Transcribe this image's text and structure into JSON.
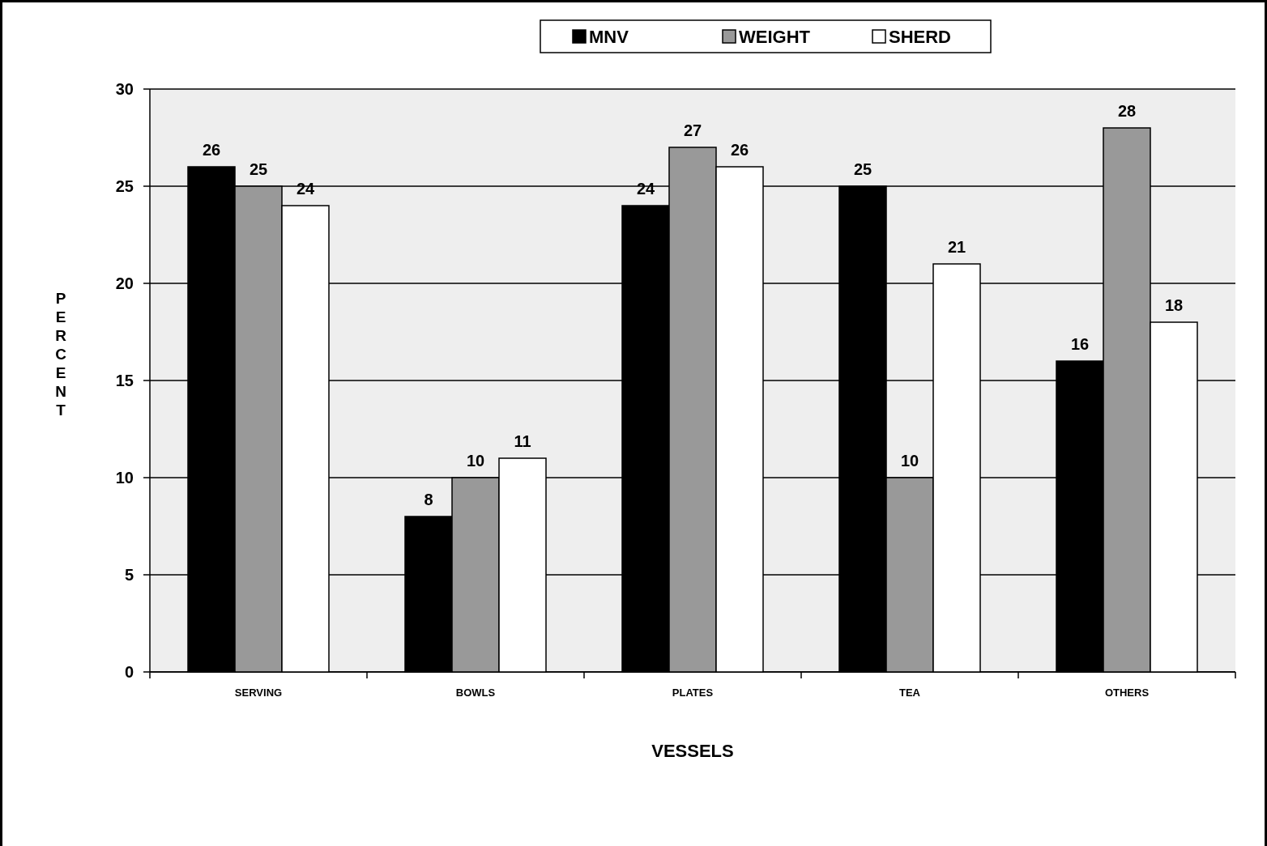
{
  "chart_data": {
    "type": "bar",
    "xlabel": "VESSELS",
    "ylabel": "PERCENT",
    "categories": [
      "SERVING",
      "BOWLS",
      "PLATES",
      "TEA",
      "OTHERS"
    ],
    "series": [
      {
        "name": "MNV",
        "color": "#000000",
        "values": [
          26,
          8,
          24,
          25,
          16
        ]
      },
      {
        "name": "WEIGHT",
        "color": "#999999",
        "values": [
          25,
          10,
          27,
          10,
          28
        ]
      },
      {
        "name": "SHERD",
        "color": "#ffffff",
        "values": [
          24,
          11,
          26,
          21,
          18
        ]
      }
    ],
    "ylim": [
      0,
      30
    ],
    "yticks": [
      0,
      5,
      10,
      15,
      20,
      25,
      30
    ],
    "grid": "y",
    "legend": "top",
    "data_labels": true
  }
}
